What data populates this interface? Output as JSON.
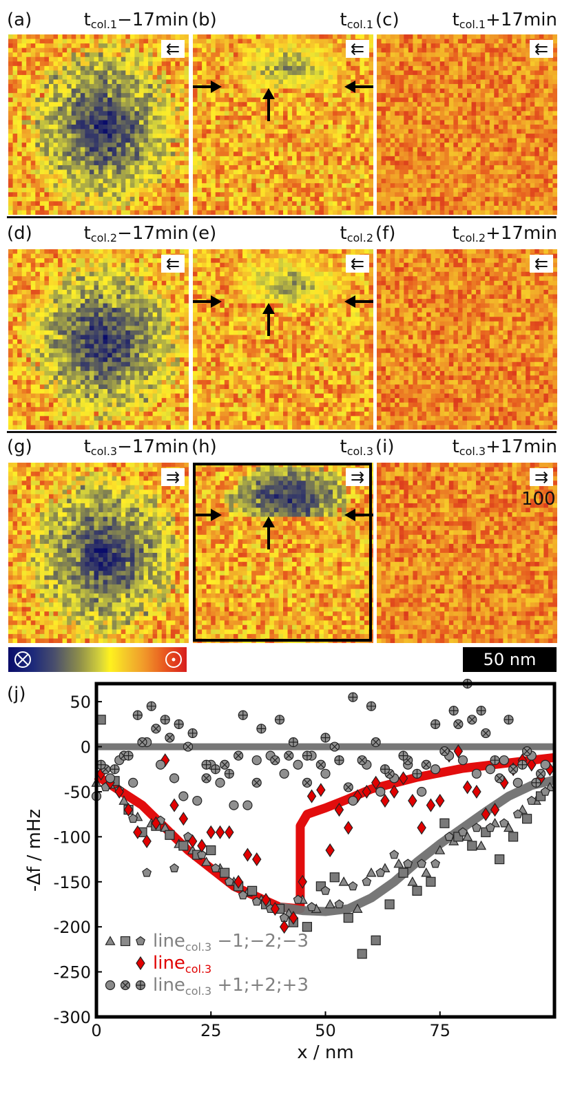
{
  "panels": [
    {
      "id": "a",
      "label": "(a)",
      "t_sub": "col.1",
      "suffix": "−17min",
      "dir": "⇇",
      "skyrmion": "full"
    },
    {
      "id": "b",
      "label": "(b)",
      "t_sub": "col.1",
      "suffix": "",
      "dir": "⇇",
      "skyrmion": "top"
    },
    {
      "id": "c",
      "label": "(c)",
      "t_sub": "col.1",
      "suffix": "+17min",
      "dir": "⇇",
      "skyrmion": "none"
    },
    {
      "id": "d",
      "label": "(d)",
      "t_sub": "col.2",
      "suffix": "−17min",
      "dir": "⇇",
      "skyrmion": "full"
    },
    {
      "id": "e",
      "label": "(e)",
      "t_sub": "col.2",
      "suffix": "",
      "dir": "⇇",
      "skyrmion": "top"
    },
    {
      "id": "f",
      "label": "(f)",
      "t_sub": "col.2",
      "suffix": "+17min",
      "dir": "⇇",
      "skyrmion": "none"
    },
    {
      "id": "g",
      "label": "(g)",
      "t_sub": "col.3",
      "suffix": "−17min",
      "dir": "⇉",
      "skyrmion": "full"
    },
    {
      "id": "h",
      "label": "(h)",
      "t_sub": "col.3",
      "suffix": "",
      "dir": "⇉",
      "skyrmion": "top"
    },
    {
      "id": "i",
      "label": "(i)",
      "t_sub": "col.3",
      "suffix": "+17min",
      "dir": "⇉",
      "skyrmion": "none"
    }
  ],
  "t_prefix": "t",
  "stray_label": "100",
  "scale_bar": "50 nm",
  "colorbar": {
    "left_symbol": "⊗",
    "right_symbol": "⊙",
    "colors": [
      "#0a0c6a",
      "#4a4f6c",
      "#d8d53a",
      "#fff21e",
      "#f19a2a",
      "#d71e1e"
    ]
  },
  "chart_data": {
    "type": "scatter",
    "panel_label": "(j)",
    "xlabel": "x / nm",
    "ylabel": "-Δf / mHz",
    "xlim": [
      0,
      100
    ],
    "ylim": [
      -300,
      70
    ],
    "xticks": [
      0,
      25,
      50,
      75
    ],
    "yticks": [
      50,
      0,
      -50,
      -100,
      -150,
      -200,
      -250,
      -300
    ],
    "grid": false,
    "legend_placement": "bottom-left",
    "legend": [
      {
        "markers": [
          "triangle",
          "square",
          "pentagon"
        ],
        "base": "line",
        "sub": "col.3",
        "suffix": " −1;−2;−3",
        "color": "#808080"
      },
      {
        "markers": [
          "diamond"
        ],
        "base": "line",
        "sub": "col.3",
        "suffix": "",
        "color": "#e00000"
      },
      {
        "markers": [
          "circle",
          "circle-x",
          "circle-plus"
        ],
        "base": "line",
        "sub": "col.3",
        "suffix": " +1;+2;+3",
        "color": "#808080"
      }
    ],
    "series": [
      {
        "marker": "triangle",
        "color": "#8a8a8a",
        "x": [
          0,
          3,
          6,
          9,
          12,
          15,
          18,
          21,
          24,
          27,
          30,
          33,
          36,
          39,
          42,
          45,
          48,
          51,
          54,
          57,
          60,
          63,
          66,
          69,
          72,
          75,
          78,
          81,
          84,
          87,
          90,
          93,
          96,
          99
        ],
        "y": [
          -40,
          -42,
          -60,
          -78,
          -85,
          -90,
          -108,
          -115,
          -128,
          -135,
          -150,
          -162,
          -170,
          -180,
          -185,
          -170,
          -180,
          -175,
          -150,
          -180,
          -140,
          -135,
          -130,
          -150,
          -140,
          -115,
          -105,
          -100,
          -110,
          -85,
          -90,
          -70,
          -60,
          -45
        ]
      },
      {
        "marker": "square",
        "color": "#7a7a7a",
        "x": [
          1,
          4,
          7,
          10,
          13,
          16,
          19,
          22,
          25,
          28,
          31,
          34,
          37,
          40,
          43,
          46,
          49,
          52,
          55,
          58,
          61,
          64,
          67,
          70,
          73,
          76,
          79,
          82,
          85,
          88,
          91,
          94,
          97
        ],
        "y": [
          30,
          -38,
          -70,
          -95,
          -88,
          -98,
          -110,
          -120,
          -115,
          -140,
          -155,
          -160,
          -175,
          -180,
          -195,
          -200,
          -155,
          -145,
          -190,
          -230,
          -215,
          -175,
          -140,
          -160,
          -150,
          -85,
          -100,
          -110,
          -95,
          -125,
          -100,
          -80,
          -55
        ]
      },
      {
        "marker": "pentagon",
        "color": "#8c8c8c",
        "x": [
          2,
          5,
          8,
          11,
          14,
          17,
          20,
          23,
          26,
          29,
          32,
          35,
          38,
          41,
          44,
          47,
          50,
          53,
          56,
          59,
          62,
          65,
          68,
          71,
          74,
          77,
          80,
          83,
          86,
          89,
          92,
          95,
          98
        ],
        "y": [
          -45,
          -48,
          -80,
          -140,
          -82,
          -135,
          -100,
          -120,
          -135,
          -150,
          -165,
          -172,
          -180,
          -190,
          -170,
          -178,
          -160,
          -175,
          -155,
          -150,
          -140,
          -120,
          -130,
          -130,
          -130,
          -100,
          -95,
          -90,
          -90,
          -85,
          -75,
          -60,
          -50
        ]
      },
      {
        "marker": "diamond",
        "color": "#e00000",
        "x": [
          1,
          3,
          5,
          7,
          9,
          11,
          13,
          15,
          17,
          19,
          21,
          23,
          25,
          27,
          29,
          31,
          33,
          35,
          37,
          39,
          41,
          43,
          45,
          47,
          49,
          51,
          53,
          55,
          57,
          59,
          61,
          63,
          65,
          67,
          69,
          71,
          73,
          75,
          77,
          79,
          81,
          83,
          85,
          87,
          89,
          91,
          93,
          95,
          97,
          99
        ],
        "y": [
          -30,
          -40,
          -50,
          -70,
          -95,
          -105,
          -85,
          -15,
          -65,
          -80,
          -105,
          -110,
          -95,
          -95,
          -95,
          -150,
          -120,
          -125,
          -170,
          -180,
          -200,
          -190,
          -150,
          -55,
          -48,
          -115,
          -70,
          -90,
          -55,
          -50,
          -40,
          -60,
          -50,
          -35,
          -60,
          -90,
          -65,
          -60,
          -10,
          -5,
          -45,
          -50,
          -75,
          -70,
          -40,
          -25,
          -15,
          -20,
          -35,
          -25
        ]
      },
      {
        "marker": "circle",
        "color": "#8f8f8f",
        "x": [
          0,
          3,
          5,
          8,
          11,
          14,
          17,
          19,
          22,
          25,
          27,
          30,
          33,
          35,
          38,
          41,
          44,
          47,
          50,
          53,
          56,
          59,
          62,
          65,
          68,
          71,
          74,
          77,
          80,
          83,
          86,
          89,
          92,
          95,
          98
        ],
        "y": [
          -55,
          -35,
          -15,
          -40,
          5,
          -20,
          -35,
          -55,
          -60,
          -20,
          -40,
          -65,
          -65,
          -15,
          -10,
          -30,
          -20,
          -10,
          -30,
          -15,
          -60,
          -20,
          -50,
          -35,
          -20,
          -50,
          -25,
          -10,
          -15,
          -30,
          -25,
          -15,
          -40,
          -10,
          -20
        ]
      },
      {
        "marker": "circle-x",
        "color": "#8f8f8f",
        "x": [
          2,
          6,
          10,
          13,
          16,
          20,
          24,
          28,
          31,
          35,
          39,
          42,
          46,
          49,
          52,
          55,
          58,
          61,
          64,
          68,
          72,
          76,
          79,
          82,
          85,
          88,
          91,
          94,
          97
        ],
        "y": [
          -25,
          -10,
          5,
          20,
          10,
          0,
          -35,
          -20,
          -10,
          -40,
          -15,
          -10,
          -40,
          -20,
          0,
          -45,
          -15,
          5,
          -30,
          -15,
          -20,
          -5,
          25,
          30,
          15,
          -35,
          -25,
          -5,
          -30
        ]
      },
      {
        "marker": "circle-plus",
        "color": "#8f8f8f",
        "x": [
          1,
          4,
          7,
          9,
          12,
          15,
          18,
          21,
          24,
          26,
          29,
          32,
          36,
          40,
          43,
          46,
          50,
          53,
          56,
          60,
          63,
          67,
          70,
          74,
          78,
          81,
          84,
          87,
          90,
          93,
          96
        ],
        "y": [
          -20,
          -25,
          -10,
          35,
          45,
          30,
          25,
          15,
          -20,
          -25,
          -30,
          35,
          20,
          30,
          5,
          -10,
          10,
          -15,
          55,
          45,
          -25,
          -10,
          -30,
          25,
          40,
          70,
          40,
          -15,
          30,
          -20,
          -40
        ]
      },
      {
        "line": true,
        "color": "#e00000",
        "width": 13,
        "x": [
          0,
          10,
          20,
          30,
          40,
          44.5,
          44.5,
          46,
          50,
          55,
          60,
          70,
          80,
          90,
          100
        ],
        "y": [
          -32,
          -65,
          -115,
          -155,
          -178,
          -180,
          -88,
          -75,
          -68,
          -58,
          -47,
          -34,
          -24,
          -18,
          -12
        ]
      },
      {
        "line": true,
        "color": "#707070",
        "width": 13,
        "x": [
          40,
          45,
          50,
          55,
          60,
          65,
          70,
          75,
          80,
          85,
          90,
          95,
          100
        ],
        "y": [
          -178,
          -182,
          -183,
          -180,
          -168,
          -150,
          -128,
          -108,
          -90,
          -72,
          -55,
          -43,
          -37
        ]
      },
      {
        "line": true,
        "color": "#707070",
        "width": 10,
        "x": [
          0,
          100
        ],
        "y": [
          0,
          0
        ]
      }
    ]
  }
}
